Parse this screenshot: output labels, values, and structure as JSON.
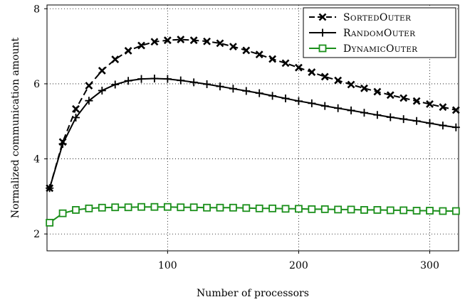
{
  "chart_data": {
    "type": "line",
    "title": "",
    "xlabel": "Number of processors",
    "ylabel": "Normalized communication amount",
    "xlim": [
      8,
      322
    ],
    "ylim": [
      1.55,
      8.1
    ],
    "x_ticks": [
      100,
      200,
      300
    ],
    "y_ticks": [
      2,
      4,
      6,
      8
    ],
    "grid": true,
    "legend_position": "top-right",
    "x": [
      10,
      20,
      30,
      40,
      50,
      60,
      70,
      80,
      90,
      100,
      110,
      120,
      130,
      140,
      150,
      160,
      170,
      180,
      190,
      200,
      210,
      220,
      230,
      240,
      250,
      260,
      270,
      280,
      290,
      300,
      310,
      320
    ],
    "series": [
      {
        "name": "SortedOuter",
        "color": "#000000",
        "dash": "dashed",
        "marker": "x",
        "values": [
          3.22,
          4.45,
          5.33,
          5.95,
          6.35,
          6.65,
          6.88,
          7.02,
          7.12,
          7.16,
          7.18,
          7.16,
          7.13,
          7.08,
          6.99,
          6.89,
          6.78,
          6.66,
          6.55,
          6.43,
          6.31,
          6.19,
          6.09,
          5.98,
          5.88,
          5.79,
          5.7,
          5.62,
          5.54,
          5.46,
          5.38,
          5.3
        ]
      },
      {
        "name": "RandomOuter",
        "color": "#000000",
        "dash": "solid",
        "marker": "+",
        "values": [
          3.22,
          4.4,
          5.1,
          5.55,
          5.82,
          5.98,
          6.08,
          6.13,
          6.14,
          6.13,
          6.09,
          6.04,
          5.99,
          5.93,
          5.87,
          5.81,
          5.75,
          5.68,
          5.61,
          5.54,
          5.48,
          5.41,
          5.35,
          5.29,
          5.23,
          5.17,
          5.11,
          5.06,
          5.01,
          4.95,
          4.89,
          4.84
        ]
      },
      {
        "name": "DynamicOuter",
        "color": "#1a8f1a",
        "dash": "solid",
        "marker": "square",
        "values": [
          2.3,
          2.55,
          2.64,
          2.68,
          2.7,
          2.71,
          2.71,
          2.72,
          2.72,
          2.72,
          2.71,
          2.71,
          2.7,
          2.7,
          2.7,
          2.69,
          2.68,
          2.68,
          2.67,
          2.67,
          2.66,
          2.66,
          2.65,
          2.65,
          2.64,
          2.64,
          2.63,
          2.63,
          2.62,
          2.62,
          2.61,
          2.61
        ]
      }
    ]
  }
}
